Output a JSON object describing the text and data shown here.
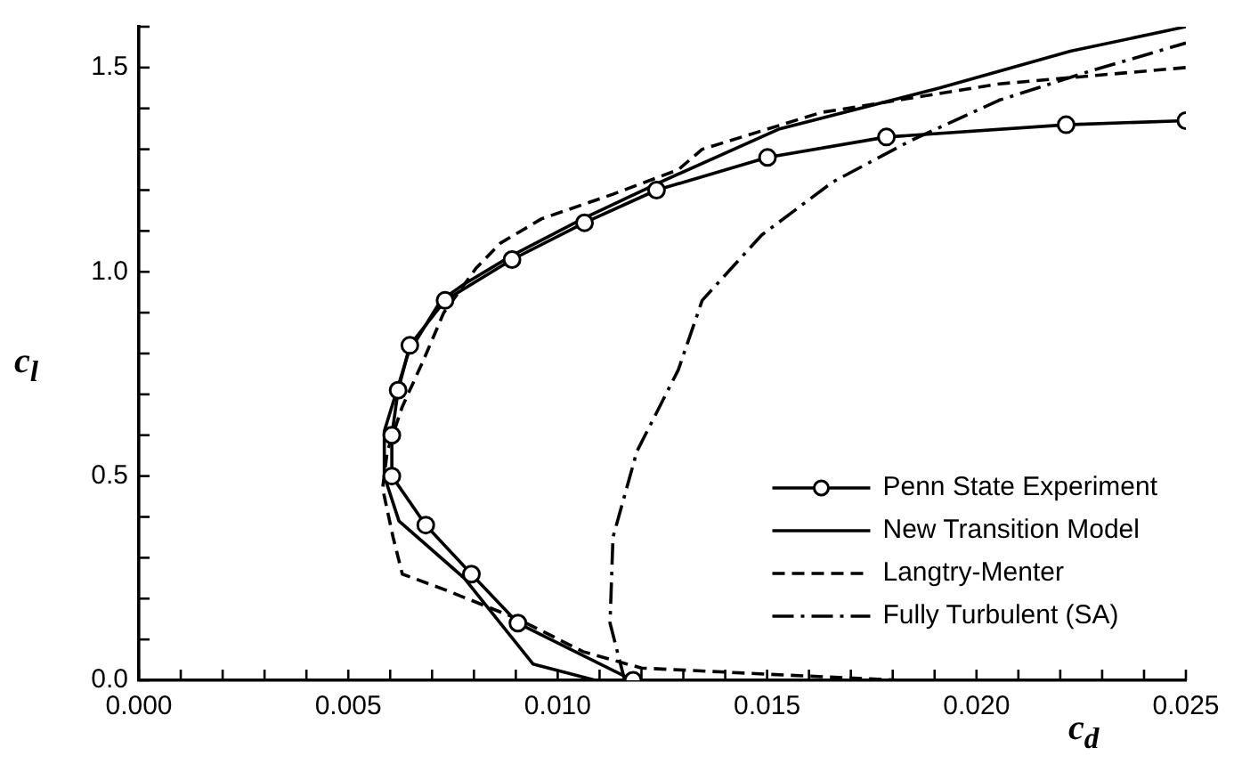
{
  "chart_data": {
    "type": "line",
    "xlabel": "c$_{d}$",
    "ylabel": "c$_{l}$",
    "xlim": [
      0,
      0.025
    ],
    "ylim": [
      0,
      1.6
    ],
    "xticks": [
      {
        "value": 0,
        "label": "0.000"
      },
      {
        "value": 0.001,
        "label": null
      },
      {
        "value": 0.002,
        "label": null
      },
      {
        "value": 0.003,
        "label": null
      },
      {
        "value": 0.004,
        "label": null
      },
      {
        "value": 0.005,
        "label": "0.005"
      },
      {
        "value": 0.006,
        "label": null
      },
      {
        "value": 0.007,
        "label": null
      },
      {
        "value": 0.008,
        "label": null
      },
      {
        "value": 0.009,
        "label": null
      },
      {
        "value": 0.01,
        "label": "0.010"
      },
      {
        "value": 0.011,
        "label": null
      },
      {
        "value": 0.012,
        "label": null
      },
      {
        "value": 0.013,
        "label": null
      },
      {
        "value": 0.014,
        "label": null
      },
      {
        "value": 0.015,
        "label": "0.015"
      },
      {
        "value": 0.016,
        "label": null
      },
      {
        "value": 0.017,
        "label": null
      },
      {
        "value": 0.018,
        "label": null
      },
      {
        "value": 0.019,
        "label": null
      },
      {
        "value": 0.02,
        "label": "0.020"
      },
      {
        "value": 0.021,
        "label": null
      },
      {
        "value": 0.022,
        "label": null
      },
      {
        "value": 0.023,
        "label": null
      },
      {
        "value": 0.024,
        "label": null
      },
      {
        "value": 0.025,
        "label": "0.025"
      }
    ],
    "yticks": [
      {
        "value": 0,
        "label": "0.0"
      },
      {
        "value": 0.1,
        "label": null
      },
      {
        "value": 0.2,
        "label": null
      },
      {
        "value": 0.3,
        "label": null
      },
      {
        "value": 0.4,
        "label": null
      },
      {
        "value": 0.5,
        "label": "0.5"
      },
      {
        "value": 0.6,
        "label": null
      },
      {
        "value": 0.7,
        "label": null
      },
      {
        "value": 0.8,
        "label": null
      },
      {
        "value": 0.9,
        "label": null
      },
      {
        "value": 1.0,
        "label": "1.0"
      },
      {
        "value": 1.1,
        "label": null
      },
      {
        "value": 1.2,
        "label": null
      },
      {
        "value": 1.3,
        "label": null
      },
      {
        "value": 1.4,
        "label": null
      },
      {
        "value": 1.5,
        "label": "1.5"
      },
      {
        "value": 1.6,
        "label": null
      }
    ],
    "grid": false,
    "legend": "bottom right",
    "series": [
      {
        "name": "Penn State Experiment",
        "color": "#000000",
        "marker": "circle",
        "line_style": "solid",
        "x": [
          0.0118,
          0.00905,
          0.00794,
          0.00685,
          0.00604,
          0.00604,
          0.00619,
          0.00647,
          0.00731,
          0.00891,
          0.01064,
          0.01236,
          0.01501,
          0.01785,
          0.02214,
          0.025
        ],
        "values": [
          0.0,
          0.14,
          0.26,
          0.38,
          0.5,
          0.6,
          0.71,
          0.82,
          0.93,
          1.03,
          1.12,
          1.2,
          1.28,
          1.33,
          1.36,
          1.37
        ]
      },
      {
        "name": "New Transition Model",
        "color": "#000000",
        "marker": "none",
        "line_style": "solid",
        "x": [
          0.0109,
          0.00941,
          0.00777,
          0.00621,
          0.00586,
          0.00586,
          0.00643,
          0.00721,
          0.00777,
          0.00891,
          0.0106,
          0.01246,
          0.0153,
          0.01912,
          0.02224,
          0.025
        ],
        "values": [
          0.0,
          0.04,
          0.25,
          0.39,
          0.5,
          0.61,
          0.8,
          0.93,
          0.97,
          1.04,
          1.13,
          1.22,
          1.35,
          1.45,
          1.54,
          1.6
        ]
      },
      {
        "name": "Langtry-Menter",
        "color": "#000000",
        "marker": "none",
        "line_style": "dashed",
        "x": [
          0.0182,
          0.015,
          0.012,
          0.01061,
          0.00905,
          0.00735,
          0.00629,
          0.00607,
          0.00582,
          0.00593,
          0.00629,
          0.00678,
          0.00728,
          0.00806,
          0.00863,
          0.00962,
          0.01132,
          0.01288,
          0.01345,
          0.01629,
          0.02054,
          0.025
        ],
        "values": [
          0.0,
          0.015,
          0.03,
          0.07,
          0.15,
          0.22,
          0.26,
          0.35,
          0.47,
          0.56,
          0.67,
          0.78,
          0.9,
          1.01,
          1.07,
          1.13,
          1.19,
          1.25,
          1.3,
          1.39,
          1.46,
          1.5
        ]
      },
      {
        "name": "Fully Turbulent (SA)",
        "color": "#000000",
        "marker": "none",
        "line_style": "dashdot",
        "x": [
          0.0116,
          0.01125,
          0.01132,
          0.01189,
          0.01288,
          0.01345,
          0.01487,
          0.01657,
          0.01841,
          0.02054,
          0.02267,
          0.025
        ],
        "values": [
          0.0,
          0.14,
          0.35,
          0.56,
          0.76,
          0.93,
          1.09,
          1.22,
          1.32,
          1.42,
          1.49,
          1.56
        ]
      }
    ]
  }
}
